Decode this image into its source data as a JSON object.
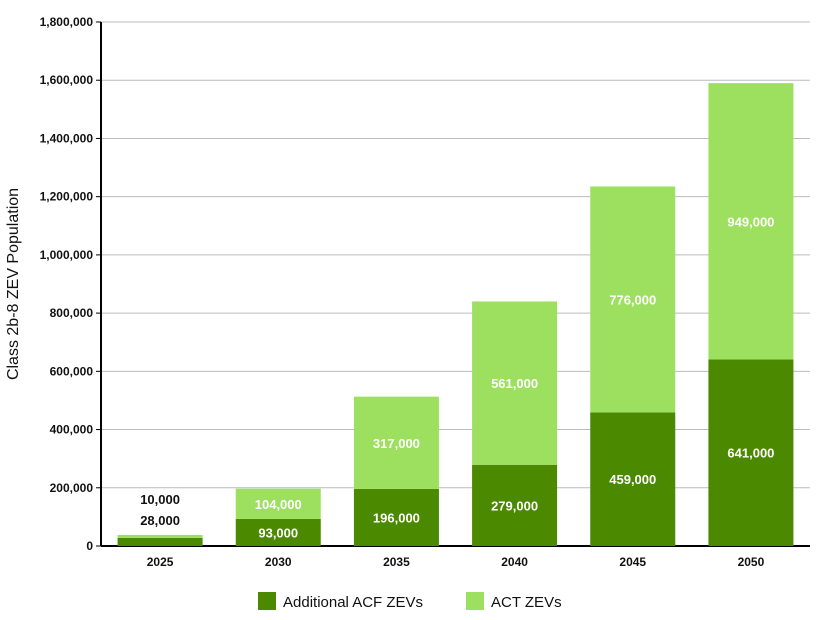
{
  "chart_data": {
    "type": "bar",
    "stacked": true,
    "title": "",
    "xlabel": "",
    "ylabel": "Class 2b-8 ZEV Population",
    "ylim": [
      0,
      1800000
    ],
    "yticks": [
      0,
      200000,
      400000,
      600000,
      800000,
      1000000,
      1200000,
      1400000,
      1600000,
      1800000
    ],
    "ytick_labels": [
      "0",
      "200,000",
      "400,000",
      "600,000",
      "800,000",
      "1,000,000",
      "1,200,000",
      "1,400,000",
      "1,600,000",
      "1,800,000"
    ],
    "categories": [
      "2025",
      "2030",
      "2035",
      "2040",
      "2045",
      "2050"
    ],
    "grid": true,
    "legend_position": "bottom",
    "series": [
      {
        "name": "Additional ACF ZEVs",
        "color": "#4a8900",
        "values": [
          28000,
          93000,
          196000,
          279000,
          459000,
          641000
        ],
        "labels": [
          "28,000",
          "93,000",
          "196,000",
          "279,000",
          "459,000",
          "641,000"
        ]
      },
      {
        "name": "ACT ZEVs",
        "color": "#9de05f",
        "values": [
          10000,
          104000,
          317000,
          561000,
          776000,
          949000
        ],
        "labels": [
          "10,000",
          "104,000",
          "317,000",
          "561,000",
          "776,000",
          "949,000"
        ]
      }
    ]
  }
}
